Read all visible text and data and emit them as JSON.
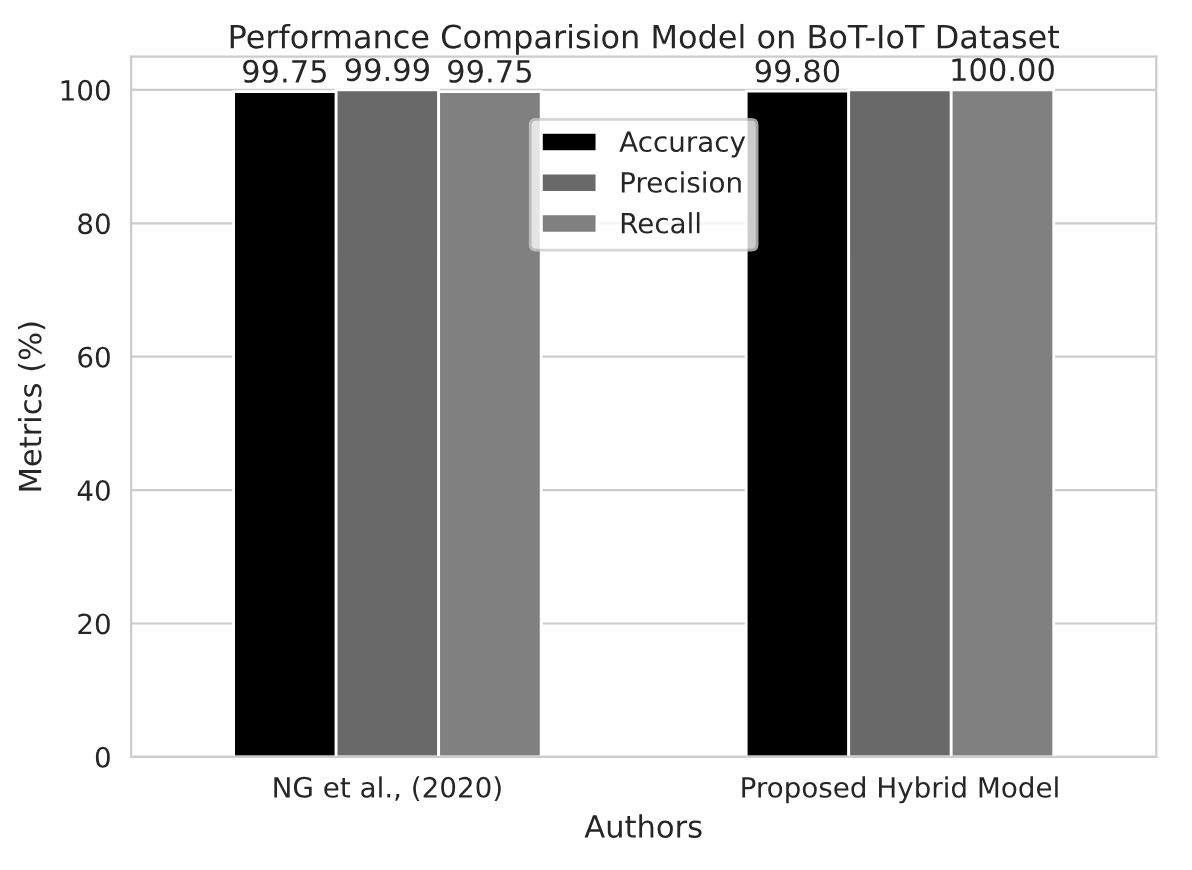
{
  "chart_data": {
    "type": "bar",
    "title": "Performance Comparision Model on BoT-IoT Dataset",
    "xlabel": "Authors",
    "ylabel": "Metrics (%)",
    "categories": [
      "NG et al., (2020)",
      "Proposed Hybrid Model"
    ],
    "series": [
      {
        "name": "Accuracy",
        "color": "#000000",
        "values": [
          99.75,
          99.8
        ],
        "value_labels": [
          "99.75",
          "99.80"
        ]
      },
      {
        "name": "Precision",
        "color": "#696969",
        "values": [
          99.99,
          100
        ],
        "value_labels": [
          "99.99",
          null
        ]
      },
      {
        "name": "Recall",
        "color": "#808080",
        "values": [
          99.75,
          100.0
        ],
        "value_labels": [
          "99.75",
          "100.00"
        ]
      }
    ],
    "ylim": [
      0,
      105
    ],
    "yticks": [
      0,
      20,
      40,
      60,
      80,
      100
    ],
    "grid": "y",
    "legend": "top"
  }
}
